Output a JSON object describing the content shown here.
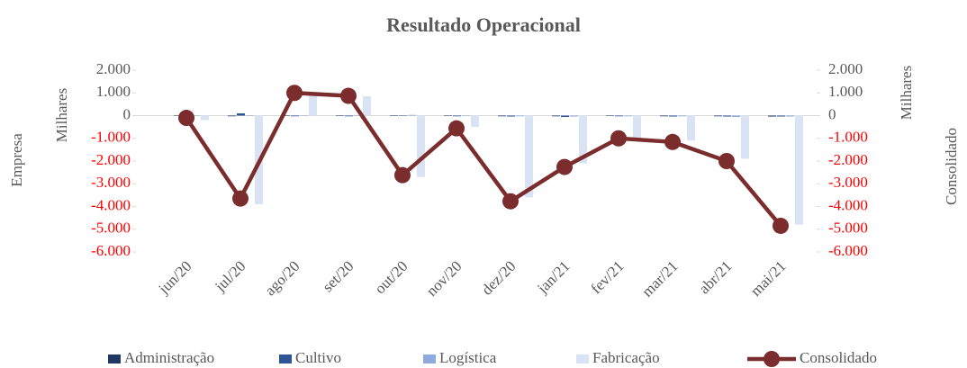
{
  "chart_data": {
    "type": "bar",
    "title": "Resultado Operacional",
    "y_label": "Empresa",
    "y_unit": "Milhares",
    "y2_label": "Consolidado",
    "y2_unit": "Milhares",
    "categories": [
      "jun/20",
      "jul/20",
      "ago/20",
      "set/20",
      "out/20",
      "nov/20",
      "dez/20",
      "jan/21",
      "fev/21",
      "mar/21",
      "abr/21",
      "mai/21"
    ],
    "series": [
      {
        "name": "Administração",
        "type": "bar",
        "color": "#1f3864",
        "values": [
          -20,
          -30,
          -20,
          -20,
          -20,
          -20,
          -30,
          -30,
          -20,
          -30,
          -30,
          -40
        ]
      },
      {
        "name": "Cultivo",
        "type": "bar",
        "color": "#2f5597",
        "values": [
          -30,
          100,
          -30,
          -30,
          -20,
          -30,
          -40,
          -60,
          -30,
          -40,
          -40,
          -40
        ]
      },
      {
        "name": "Logística",
        "type": "bar",
        "color": "#8faadc",
        "values": [
          -20,
          -20,
          -20,
          -20,
          30,
          -20,
          -30,
          -40,
          -30,
          -30,
          -60,
          -40
        ]
      },
      {
        "name": "Fabricação",
        "type": "bar",
        "color": "#dae3f3",
        "values": [
          -200,
          -3900,
          1000,
          850,
          -2700,
          -500,
          -3600,
          -2100,
          -1000,
          -1100,
          -1900,
          -4800
        ]
      },
      {
        "name": "Consolidado",
        "type": "line",
        "axis": "y2",
        "color": "#7b2c2c",
        "values": [
          -100,
          -3650,
          1000,
          870,
          -2620,
          -560,
          -3770,
          -2260,
          -1000,
          -1160,
          -2000,
          -4850
        ]
      }
    ],
    "ylim": [
      -6000,
      2000
    ],
    "yticks": [
      {
        "value": -6000,
        "label": "-6.000"
      },
      {
        "value": -5000,
        "label": "-5.000"
      },
      {
        "value": -4000,
        "label": "-4.000"
      },
      {
        "value": -3000,
        "label": "-3.000"
      },
      {
        "value": -2000,
        "label": "-2.000"
      },
      {
        "value": -1000,
        "label": "-1.000"
      },
      0,
      {
        "value": 1000,
        "label": "1.000"
      },
      {
        "value": 2000,
        "label": "2.000"
      }
    ],
    "y2lim": [
      -6000,
      2000
    ],
    "y2ticks": [
      {
        "value": -6000,
        "label": "-6.000"
      },
      {
        "value": -5000,
        "label": "-5.000"
      },
      {
        "value": -4000,
        "label": "-4.000"
      },
      {
        "value": -3000,
        "label": "-3.000"
      },
      {
        "value": -2000,
        "label": "-2.000"
      },
      {
        "value": -1000,
        "label": "-1.000"
      },
      0,
      {
        "value": 1000,
        "label": "1.000"
      },
      {
        "value": 2000,
        "label": "2.000"
      }
    ],
    "negative_tick_color": "#ff0000",
    "legend": "bottom"
  }
}
